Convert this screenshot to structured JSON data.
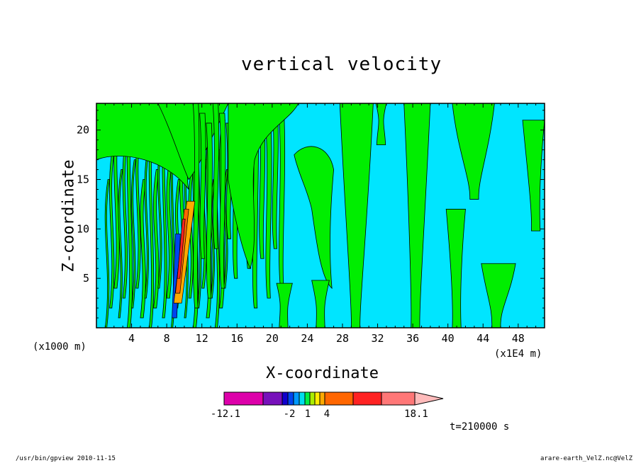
{
  "chart_data": {
    "type": "heatmap",
    "title": "vertical velocity",
    "xlabel": "X-coordinate",
    "ylabel": "Z-coordinate",
    "x_unit_left": "(x1000 m)",
    "x_unit_right": "(x1E4 m)",
    "xlim": [
      0,
      51
    ],
    "ylim": [
      0,
      22.7
    ],
    "x_ticks": [
      "4",
      "8",
      "12",
      "16",
      "20",
      "24",
      "28",
      "32",
      "36",
      "40",
      "44",
      "48"
    ],
    "x_tick_values": [
      4,
      8,
      12,
      16,
      20,
      24,
      28,
      32,
      36,
      40,
      44,
      48
    ],
    "y_ticks": [
      "5",
      "10",
      "15",
      "20"
    ],
    "y_tick_values": [
      5,
      10,
      15,
      20
    ],
    "colorbar": {
      "colors": [
        "#dd00aa",
        "#7711bb",
        "#1100cc",
        "#0044ee",
        "#0099ff",
        "#00ddee",
        "#00ee44",
        "#aaee00",
        "#ffee00",
        "#ffaa00",
        "#ff6600",
        "#ff2222",
        "#ff7777",
        "#ffbbbb"
      ],
      "labels": [
        "-12.1",
        "-2",
        "1",
        "4",
        "18.1"
      ],
      "label_values": [
        -12.1,
        -2,
        1,
        4,
        18.1
      ]
    },
    "background_color": "#00e5ff",
    "positive_color": "#00ee00",
    "time_label": "t=210000 s"
  },
  "footer": {
    "left": "/usr/bin/gpview   2010-11-15",
    "right": "arare-earth_VelZ.nc@VelZ"
  }
}
